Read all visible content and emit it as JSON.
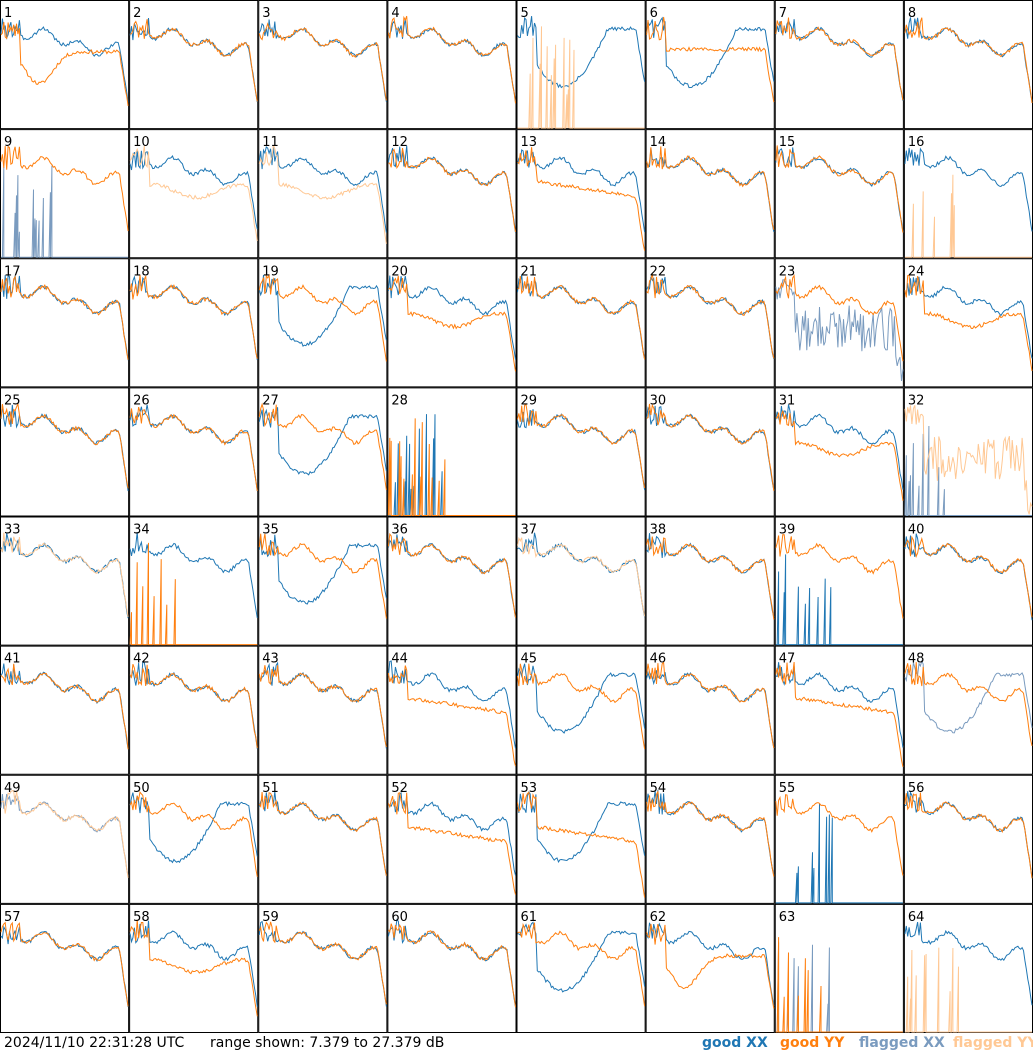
{
  "footer": {
    "timestamp": "2024/11/10 22:31:28 UTC",
    "range": "range shown: 7.379 to 27.379 dB"
  },
  "legend": [
    {
      "label": "good XX",
      "color": "#1f77b4"
    },
    {
      "label": "good YY",
      "color": "#ff7f0e"
    },
    {
      "label": "flagged XX",
      "color": "#7a9bbf"
    },
    {
      "label": "flagged YY",
      "color": "#ffc894"
    }
  ],
  "chart_data": {
    "type": "line",
    "ylim": [
      7.379,
      27.379
    ],
    "grid": {
      "rows": 8,
      "cols": 8
    },
    "panels": [
      {
        "label": "1",
        "xx": "good",
        "yy": "good",
        "xx_shape": "normal",
        "yy_shape": "dip"
      },
      {
        "label": "2",
        "xx": "good",
        "yy": "good",
        "xx_shape": "normal",
        "yy_shape": "normal"
      },
      {
        "label": "3",
        "xx": "good",
        "yy": "good",
        "xx_shape": "normal",
        "yy_shape": "normal"
      },
      {
        "label": "4",
        "xx": "good",
        "yy": "good",
        "xx_shape": "normal",
        "yy_shape": "normal"
      },
      {
        "label": "5",
        "xx": "good",
        "yy": "flagged",
        "xx_shape": "bowl",
        "yy_shape": "dead"
      },
      {
        "label": "6",
        "xx": "good",
        "yy": "good",
        "xx_shape": "bowl",
        "yy_shape": "flat"
      },
      {
        "label": "7",
        "xx": "good",
        "yy": "good",
        "xx_shape": "normal",
        "yy_shape": "normal"
      },
      {
        "label": "8",
        "xx": "good",
        "yy": "good",
        "xx_shape": "normal",
        "yy_shape": "normal"
      },
      {
        "label": "9",
        "xx": "flagged",
        "yy": "good",
        "xx_shape": "dead",
        "yy_shape": "normal"
      },
      {
        "label": "10",
        "xx": "good",
        "yy": "flagged",
        "xx_shape": "normal",
        "yy_shape": "low"
      },
      {
        "label": "11",
        "xx": "good",
        "yy": "flagged",
        "xx_shape": "normal",
        "yy_shape": "low"
      },
      {
        "label": "12",
        "xx": "good",
        "yy": "good",
        "xx_shape": "normal",
        "yy_shape": "normal"
      },
      {
        "label": "13",
        "xx": "good",
        "yy": "good",
        "xx_shape": "normal",
        "yy_shape": "droop"
      },
      {
        "label": "14",
        "xx": "good",
        "yy": "good",
        "xx_shape": "normal",
        "yy_shape": "normal"
      },
      {
        "label": "15",
        "xx": "good",
        "yy": "good",
        "xx_shape": "normal",
        "yy_shape": "normal"
      },
      {
        "label": "16",
        "xx": "good",
        "yy": "flagged",
        "xx_shape": "normal",
        "yy_shape": "dead"
      },
      {
        "label": "17",
        "xx": "good",
        "yy": "good",
        "xx_shape": "normal",
        "yy_shape": "normal"
      },
      {
        "label": "18",
        "xx": "good",
        "yy": "good",
        "xx_shape": "normal",
        "yy_shape": "normal"
      },
      {
        "label": "19",
        "xx": "good",
        "yy": "good",
        "xx_shape": "bowl",
        "yy_shape": "normal"
      },
      {
        "label": "20",
        "xx": "good",
        "yy": "good",
        "xx_shape": "normal",
        "yy_shape": "low"
      },
      {
        "label": "21",
        "xx": "good",
        "yy": "good",
        "xx_shape": "normal",
        "yy_shape": "normal"
      },
      {
        "label": "22",
        "xx": "good",
        "yy": "good",
        "xx_shape": "normal",
        "yy_shape": "normal"
      },
      {
        "label": "23",
        "xx": "flagged",
        "yy": "good",
        "xx_shape": "noisy",
        "yy_shape": "normal"
      },
      {
        "label": "24",
        "xx": "good",
        "yy": "good",
        "xx_shape": "normal",
        "yy_shape": "low"
      },
      {
        "label": "25",
        "xx": "good",
        "yy": "good",
        "xx_shape": "normal",
        "yy_shape": "normal"
      },
      {
        "label": "26",
        "xx": "good",
        "yy": "good",
        "xx_shape": "normal",
        "yy_shape": "normal"
      },
      {
        "label": "27",
        "xx": "good",
        "yy": "good",
        "xx_shape": "bowl",
        "yy_shape": "normal"
      },
      {
        "label": "28",
        "xx": "good",
        "yy": "good",
        "xx_shape": "dead",
        "yy_shape": "dead"
      },
      {
        "label": "29",
        "xx": "good",
        "yy": "good",
        "xx_shape": "normal",
        "yy_shape": "normal"
      },
      {
        "label": "30",
        "xx": "good",
        "yy": "good",
        "xx_shape": "normal",
        "yy_shape": "normal"
      },
      {
        "label": "31",
        "xx": "good",
        "yy": "good",
        "xx_shape": "normal",
        "yy_shape": "low"
      },
      {
        "label": "32",
        "xx": "flagged",
        "yy": "flagged",
        "xx_shape": "dead",
        "yy_shape": "noisy"
      },
      {
        "label": "33",
        "xx": "good",
        "yy": "flagged",
        "xx_shape": "normal",
        "yy_shape": "normal"
      },
      {
        "label": "34",
        "xx": "good",
        "yy": "good",
        "xx_shape": "normal",
        "yy_shape": "dead"
      },
      {
        "label": "35",
        "xx": "good",
        "yy": "good",
        "xx_shape": "bowl",
        "yy_shape": "normal"
      },
      {
        "label": "36",
        "xx": "good",
        "yy": "good",
        "xx_shape": "normal",
        "yy_shape": "normal"
      },
      {
        "label": "37",
        "xx": "good",
        "yy": "flagged",
        "xx_shape": "normal",
        "yy_shape": "normal"
      },
      {
        "label": "38",
        "xx": "good",
        "yy": "good",
        "xx_shape": "normal",
        "yy_shape": "normal"
      },
      {
        "label": "39",
        "xx": "good",
        "yy": "good",
        "xx_shape": "dead",
        "yy_shape": "normal"
      },
      {
        "label": "40",
        "xx": "good",
        "yy": "good",
        "xx_shape": "normal",
        "yy_shape": "normal"
      },
      {
        "label": "41",
        "xx": "good",
        "yy": "good",
        "xx_shape": "normal",
        "yy_shape": "normal"
      },
      {
        "label": "42",
        "xx": "good",
        "yy": "good",
        "xx_shape": "normal",
        "yy_shape": "normal"
      },
      {
        "label": "43",
        "xx": "good",
        "yy": "good",
        "xx_shape": "normal",
        "yy_shape": "normal"
      },
      {
        "label": "44",
        "xx": "good",
        "yy": "good",
        "xx_shape": "normal",
        "yy_shape": "droop"
      },
      {
        "label": "45",
        "xx": "good",
        "yy": "good",
        "xx_shape": "bowl",
        "yy_shape": "normal"
      },
      {
        "label": "46",
        "xx": "good",
        "yy": "good",
        "xx_shape": "normal",
        "yy_shape": "normal"
      },
      {
        "label": "47",
        "xx": "good",
        "yy": "good",
        "xx_shape": "normal",
        "yy_shape": "droop"
      },
      {
        "label": "48",
        "xx": "flagged",
        "yy": "good",
        "xx_shape": "bowl",
        "yy_shape": "normal"
      },
      {
        "label": "49",
        "xx": "flagged",
        "yy": "flagged",
        "xx_shape": "normal",
        "yy_shape": "normal"
      },
      {
        "label": "50",
        "xx": "good",
        "yy": "good",
        "xx_shape": "bowl",
        "yy_shape": "normal"
      },
      {
        "label": "51",
        "xx": "good",
        "yy": "good",
        "xx_shape": "normal",
        "yy_shape": "normal"
      },
      {
        "label": "52",
        "xx": "good",
        "yy": "good",
        "xx_shape": "normal",
        "yy_shape": "droop"
      },
      {
        "label": "53",
        "xx": "good",
        "yy": "good",
        "xx_shape": "bowl",
        "yy_shape": "droop"
      },
      {
        "label": "54",
        "xx": "good",
        "yy": "good",
        "xx_shape": "normal",
        "yy_shape": "normal"
      },
      {
        "label": "55",
        "xx": "good",
        "yy": "good",
        "xx_shape": "dead",
        "yy_shape": "normal"
      },
      {
        "label": "56",
        "xx": "good",
        "yy": "good",
        "xx_shape": "normal",
        "yy_shape": "normal"
      },
      {
        "label": "57",
        "xx": "good",
        "yy": "good",
        "xx_shape": "normal",
        "yy_shape": "normal"
      },
      {
        "label": "58",
        "xx": "good",
        "yy": "good",
        "xx_shape": "normal",
        "yy_shape": "low"
      },
      {
        "label": "59",
        "xx": "good",
        "yy": "good",
        "xx_shape": "normal",
        "yy_shape": "normal"
      },
      {
        "label": "60",
        "xx": "good",
        "yy": "good",
        "xx_shape": "normal",
        "yy_shape": "normal"
      },
      {
        "label": "61",
        "xx": "good",
        "yy": "good",
        "xx_shape": "bowl",
        "yy_shape": "normal"
      },
      {
        "label": "62",
        "xx": "good",
        "yy": "good",
        "xx_shape": "normal",
        "yy_shape": "dip"
      },
      {
        "label": "63",
        "xx": "flagged",
        "yy": "good",
        "xx_shape": "dead",
        "yy_shape": "dead"
      },
      {
        "label": "64",
        "xx": "good",
        "yy": "flagged",
        "xx_shape": "normal",
        "yy_shape": "dead"
      }
    ]
  }
}
